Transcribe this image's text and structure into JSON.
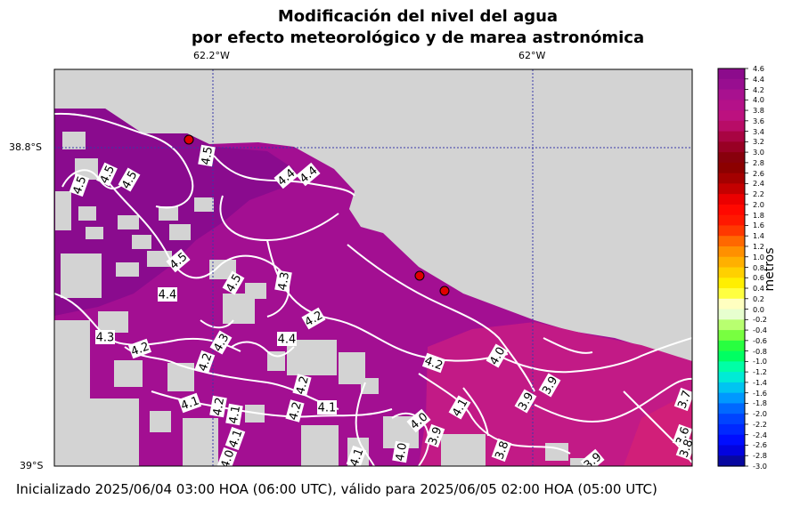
{
  "chart_data": {
    "type": "heatmap",
    "title_line1": "Modificación del nivel del agua",
    "title_line2": "por efecto meteorológico y de marea astronómica",
    "x_ticks": [
      "62.2°W",
      "62°W"
    ],
    "y_ticks": [
      "38.8°S",
      "39°S"
    ],
    "colorbar": {
      "label": "metros",
      "min": -3.0,
      "max": 4.6,
      "step": 0.2,
      "ticks": [
        "4.6",
        "4.4",
        "4.2",
        "4.0",
        "3.8",
        "3.6",
        "3.4",
        "3.2",
        "3.0",
        "2.8",
        "2.6",
        "2.4",
        "2.2",
        "2.0",
        "1.8",
        "1.6",
        "1.4",
        "1.2",
        "1.0",
        "0.8",
        "0.6",
        "0.4",
        "0.2",
        "0.0",
        "-0.2",
        "-0.4",
        "-0.6",
        "-0.8",
        "-1.0",
        "-1.2",
        "-1.4",
        "-1.6",
        "-1.8",
        "-2.0",
        "-2.2",
        "-2.4",
        "-2.6",
        "-2.8",
        "-3.0"
      ]
    },
    "contour_labels": [
      "4.5",
      "4.5",
      "4.5",
      "4.5",
      "4.4",
      "4.4",
      "4.3",
      "4.5",
      "4.5",
      "4.4",
      "4.2",
      "4.4",
      "4.3",
      "4.2",
      "4.3",
      "4.2",
      "4.2",
      "4.2",
      "4.2",
      "4.1",
      "4.2",
      "4.1",
      "4.1",
      "4.1",
      "4.0",
      "4.1",
      "4.0",
      "4.0",
      "3.9",
      "3.9",
      "3.9",
      "3.8",
      "3.6",
      "3.7",
      "3.8",
      "4.0",
      "4.1",
      "3.9"
    ],
    "stations": 3,
    "colors": {
      "land": "#d3d3d3",
      "high": "#8b0a8f",
      "mid": "#b0128e",
      "low": "#c81c80",
      "contour": "#ffffff",
      "grid": "#3030a0",
      "station": "#e00000"
    }
  },
  "footer": "Inicializado 2025/06/04 03:00 HOA (06:00 UTC), válido para 2025/06/05 02:00 HOA (05:00 UTC)"
}
